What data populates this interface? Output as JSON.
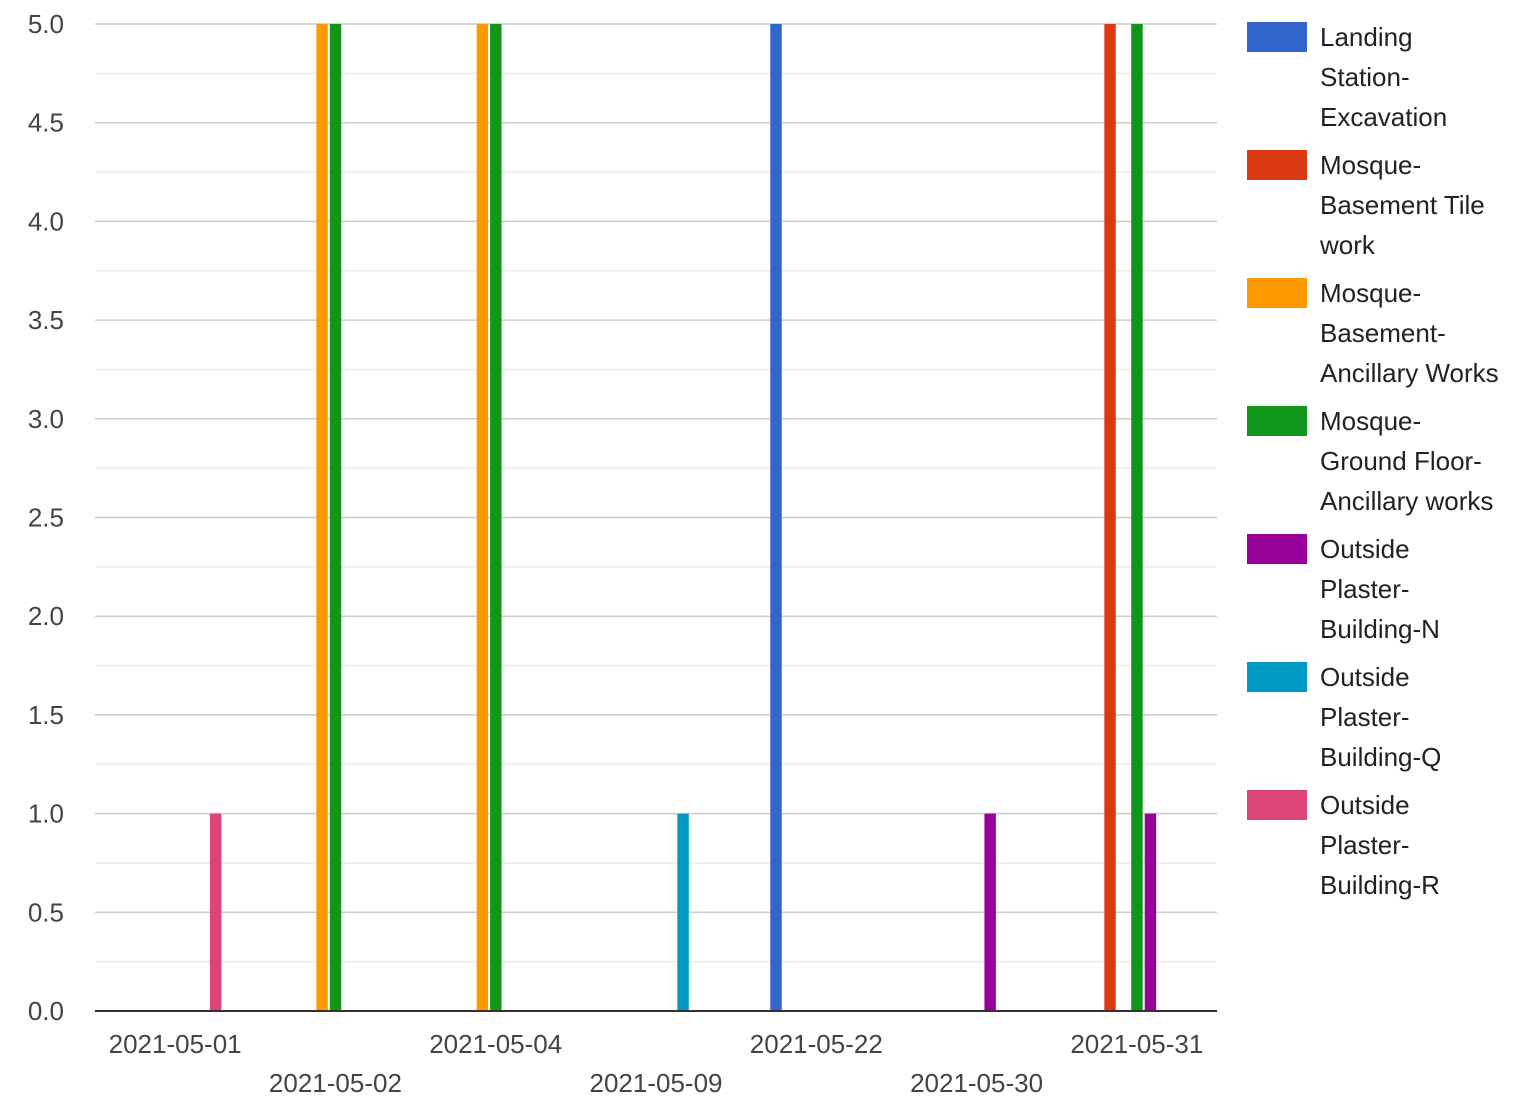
{
  "chart_data": {
    "type": "bar",
    "title": "",
    "xlabel": "",
    "ylabel": "",
    "ylim": [
      0,
      5
    ],
    "y_ticks": [
      "0.0",
      "0.5",
      "1.0",
      "1.5",
      "2.0",
      "2.5",
      "3.0",
      "3.5",
      "4.0",
      "4.5",
      "5.0"
    ],
    "grid": true,
    "legend_position": "right",
    "categories": [
      "2021-05-01",
      "2021-05-02",
      "2021-05-04",
      "2021-05-09",
      "2021-05-22",
      "2021-05-30",
      "2021-05-31"
    ],
    "series": [
      {
        "name": "Landing Station-Excavation",
        "legend_lines": [
          "Landing",
          "Station-",
          "Excavation"
        ],
        "color": "#3366cc",
        "values": [
          0,
          0,
          0,
          0,
          5,
          0,
          0
        ]
      },
      {
        "name": "Mosque-Basement Tile work",
        "legend_lines": [
          "Mosque-",
          "Basement Tile",
          "work"
        ],
        "color": "#dc3912",
        "values": [
          0,
          0,
          0,
          0,
          0,
          0,
          5
        ]
      },
      {
        "name": "Mosque-Basement-Ancillary Works",
        "legend_lines": [
          "Mosque-",
          "Basement-",
          "Ancillary Works"
        ],
        "color": "#ff9900",
        "values": [
          0,
          5,
          5,
          0,
          0,
          0,
          0
        ]
      },
      {
        "name": "Mosque-Ground Floor-Ancillary works",
        "legend_lines": [
          "Mosque-",
          "Ground Floor-",
          "Ancillary works"
        ],
        "color": "#109618",
        "values": [
          0,
          5,
          5,
          0,
          0,
          0,
          5
        ]
      },
      {
        "name": "Outside Plaster-Building-N",
        "legend_lines": [
          "Outside",
          "Plaster-",
          "Building-N"
        ],
        "color": "#990099",
        "values": [
          0,
          0,
          0,
          0,
          0,
          1,
          1
        ]
      },
      {
        "name": "Outside Plaster-Building-Q",
        "legend_lines": [
          "Outside",
          "Plaster-",
          "Building-Q"
        ],
        "color": "#0099c6",
        "values": [
          0,
          0,
          0,
          1,
          0,
          0,
          0
        ]
      },
      {
        "name": "Outside Plaster-Building-R",
        "legend_lines": [
          "Outside",
          "Plaster-",
          "Building-R"
        ],
        "color": "#dd4477",
        "values": [
          1,
          0,
          0,
          0,
          0,
          0,
          0
        ]
      }
    ]
  }
}
